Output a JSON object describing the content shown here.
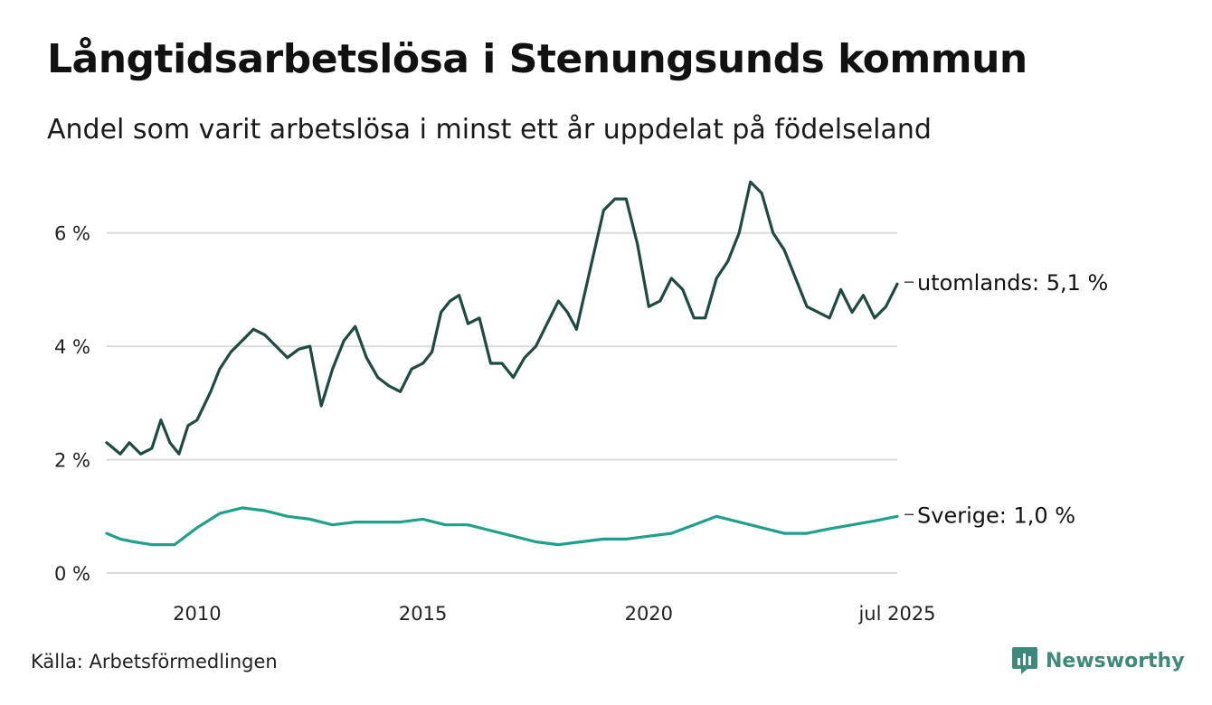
{
  "title": "Långtidsarbetslösa i Stenungsunds kommun",
  "subtitle": "Andel som varit arbetslösa i minst ett år uppdelat på födelseland",
  "source": "Källa: Arbetsförmedlingen",
  "brand": {
    "name": "Newsworthy",
    "icon": "newsworthy-logo-icon",
    "color": "#3e8a7a"
  },
  "chart_data": {
    "type": "line",
    "x_start": "2008-01",
    "x_end": "2025-07",
    "xlim": [
      2008.0,
      2025.5
    ],
    "ylim": [
      0,
      7
    ],
    "grid": true,
    "y_ticks": [
      {
        "value": 0,
        "label": "0 %"
      },
      {
        "value": 2,
        "label": "2 %"
      },
      {
        "value": 4,
        "label": "4 %"
      },
      {
        "value": 6,
        "label": "6 %"
      }
    ],
    "x_ticks": [
      {
        "value": 2010,
        "label": "2010"
      },
      {
        "value": 2015,
        "label": "2015"
      },
      {
        "value": 2020,
        "label": "2020"
      },
      {
        "value": 2025.5,
        "label": "jul 2025"
      }
    ],
    "series": [
      {
        "name": "utomlands",
        "end_label": "utomlands: 5,1 %",
        "color": "#1f4a42",
        "x": [
          2008.0,
          2008.3,
          2008.5,
          2008.75,
          2009.0,
          2009.2,
          2009.4,
          2009.6,
          2009.8,
          2010.0,
          2010.3,
          2010.5,
          2010.75,
          2011.0,
          2011.25,
          2011.5,
          2011.75,
          2012.0,
          2012.25,
          2012.5,
          2012.75,
          2013.0,
          2013.25,
          2013.5,
          2013.75,
          2014.0,
          2014.25,
          2014.5,
          2014.75,
          2015.0,
          2015.2,
          2015.4,
          2015.6,
          2015.8,
          2016.0,
          2016.25,
          2016.5,
          2016.75,
          2017.0,
          2017.25,
          2017.5,
          2017.75,
          2018.0,
          2018.2,
          2018.4,
          2018.6,
          2018.8,
          2019.0,
          2019.25,
          2019.5,
          2019.75,
          2020.0,
          2020.25,
          2020.5,
          2020.75,
          2021.0,
          2021.25,
          2021.5,
          2021.75,
          2022.0,
          2022.25,
          2022.5,
          2022.75,
          2023.0,
          2023.25,
          2023.5,
          2023.75,
          2024.0,
          2024.25,
          2024.5,
          2024.75,
          2025.0,
          2025.25,
          2025.5
        ],
        "values": [
          2.3,
          2.1,
          2.3,
          2.1,
          2.2,
          2.7,
          2.3,
          2.1,
          2.6,
          2.7,
          3.2,
          3.6,
          3.9,
          4.1,
          4.3,
          4.2,
          4.0,
          3.8,
          3.95,
          4.0,
          2.95,
          3.6,
          4.1,
          4.35,
          3.8,
          3.45,
          3.3,
          3.2,
          3.6,
          3.7,
          3.9,
          4.6,
          4.8,
          4.9,
          4.4,
          4.5,
          3.7,
          3.7,
          3.45,
          3.8,
          4.0,
          4.4,
          4.8,
          4.6,
          4.3,
          5.0,
          5.7,
          6.4,
          6.6,
          6.6,
          5.8,
          4.7,
          4.8,
          5.2,
          5.0,
          4.5,
          4.5,
          5.2,
          5.5,
          6.0,
          6.9,
          6.7,
          6.0,
          5.7,
          5.2,
          4.7,
          4.6,
          4.5,
          5.0,
          4.6,
          4.9,
          4.5,
          4.7,
          5.1
        ]
      },
      {
        "name": "Sverige",
        "end_label": "Sverige: 1,0 %",
        "color": "#1fa08a",
        "x": [
          2008.0,
          2008.3,
          2008.6,
          2009.0,
          2009.5,
          2010.0,
          2010.5,
          2011.0,
          2011.5,
          2012.0,
          2012.5,
          2013.0,
          2013.5,
          2014.0,
          2014.5,
          2015.0,
          2015.5,
          2016.0,
          2016.5,
          2017.0,
          2017.5,
          2018.0,
          2018.5,
          2019.0,
          2019.5,
          2020.0,
          2020.5,
          2021.0,
          2021.5,
          2022.0,
          2022.5,
          2023.0,
          2023.5,
          2024.0,
          2024.5,
          2025.0,
          2025.5
        ],
        "values": [
          0.7,
          0.6,
          0.55,
          0.5,
          0.5,
          0.8,
          1.05,
          1.15,
          1.1,
          1.0,
          0.95,
          0.85,
          0.9,
          0.9,
          0.9,
          0.95,
          0.85,
          0.85,
          0.75,
          0.65,
          0.55,
          0.5,
          0.55,
          0.6,
          0.6,
          0.65,
          0.7,
          0.85,
          1.0,
          0.9,
          0.8,
          0.7,
          0.7,
          0.78,
          0.85,
          0.92,
          1.0
        ]
      }
    ]
  }
}
